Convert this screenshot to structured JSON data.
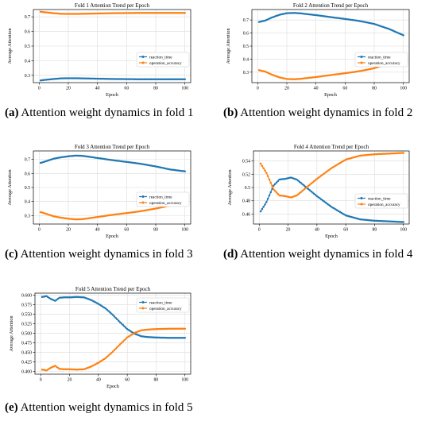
{
  "captions": [
    {
      "letter": "(a)",
      "text": " Attention weight dynamics in fold 1"
    },
    {
      "letter": "(b)",
      "text": " Attention weight dynamics in fold 2"
    },
    {
      "letter": "(c)",
      "text": " Attention weight dynamics in fold 3"
    },
    {
      "letter": "(d)",
      "text": " Attention weight dynamics in fold 4"
    },
    {
      "letter": "(e)",
      "text": " Attention weight dynamics in fold 5"
    }
  ],
  "colors": {
    "reaction_time": "#1f77b4",
    "operation_accuracy": "#ff7f0e"
  },
  "chart_data": [
    {
      "type": "line",
      "title": "Fold 1 Attention Trend per Epoch",
      "xlabel": "Epoch",
      "ylabel": "Average Attention",
      "xlim": [
        -4,
        104
      ],
      "ylim": [
        0.25,
        0.75
      ],
      "xticks": [
        0,
        20,
        40,
        60,
        80,
        100
      ],
      "yticks": [
        0.3,
        0.4,
        0.5,
        0.6,
        0.7
      ],
      "grid": true,
      "legend": "center-right",
      "series": [
        {
          "name": "reaction_time",
          "points": [
            [
              1,
              0.265
            ],
            [
              5,
              0.27
            ],
            [
              10,
              0.275
            ],
            [
              15,
              0.279
            ],
            [
              20,
              0.28
            ],
            [
              25,
              0.28
            ],
            [
              30,
              0.279
            ],
            [
              40,
              0.277
            ],
            [
              50,
              0.275
            ],
            [
              60,
              0.274
            ],
            [
              70,
              0.273
            ],
            [
              80,
              0.273
            ],
            [
              90,
              0.273
            ],
            [
              100,
              0.273
            ]
          ]
        },
        {
          "name": "operation_accuracy",
          "points": [
            [
              1,
              0.735
            ],
            [
              5,
              0.73
            ],
            [
              10,
              0.725
            ],
            [
              15,
              0.721
            ],
            [
              20,
              0.72
            ],
            [
              25,
              0.72
            ],
            [
              30,
              0.721
            ],
            [
              40,
              0.723
            ],
            [
              50,
              0.725
            ],
            [
              60,
              0.726
            ],
            [
              70,
              0.727
            ],
            [
              80,
              0.727
            ],
            [
              90,
              0.727
            ],
            [
              100,
              0.727
            ]
          ]
        }
      ]
    },
    {
      "type": "line",
      "title": "Fold 2 Attention Trend per Epoch",
      "xlabel": "Epoch",
      "ylabel": "Average Attention",
      "xlim": [
        -4,
        104
      ],
      "ylim": [
        0.22,
        0.78
      ],
      "xticks": [
        0,
        20,
        40,
        60,
        80,
        100
      ],
      "yticks": [
        0.3,
        0.4,
        0.5,
        0.6,
        0.7
      ],
      "grid": true,
      "legend": "center-right",
      "series": [
        {
          "name": "reaction_time",
          "points": [
            [
              1,
              0.685
            ],
            [
              5,
              0.695
            ],
            [
              10,
              0.72
            ],
            [
              15,
              0.74
            ],
            [
              20,
              0.752
            ],
            [
              25,
              0.754
            ],
            [
              30,
              0.75
            ],
            [
              40,
              0.737
            ],
            [
              50,
              0.722
            ],
            [
              60,
              0.708
            ],
            [
              70,
              0.692
            ],
            [
              80,
              0.67
            ],
            [
              90,
              0.632
            ],
            [
              100,
              0.583
            ]
          ]
        },
        {
          "name": "operation_accuracy",
          "points": [
            [
              1,
              0.315
            ],
            [
              5,
              0.305
            ],
            [
              10,
              0.28
            ],
            [
              15,
              0.26
            ],
            [
              20,
              0.248
            ],
            [
              25,
              0.246
            ],
            [
              30,
              0.25
            ],
            [
              40,
              0.263
            ],
            [
              50,
              0.278
            ],
            [
              60,
              0.292
            ],
            [
              70,
              0.308
            ],
            [
              80,
              0.33
            ],
            [
              90,
              0.368
            ],
            [
              100,
              0.417
            ]
          ]
        }
      ]
    },
    {
      "type": "line",
      "title": "Fold 3 Attention Trend per Epoch",
      "xlabel": "Epoch",
      "ylabel": "Average Attention",
      "xlim": [
        -4,
        104
      ],
      "ylim": [
        0.24,
        0.76
      ],
      "xticks": [
        0,
        20,
        40,
        60,
        80,
        100
      ],
      "yticks": [
        0.3,
        0.4,
        0.5,
        0.6,
        0.7
      ],
      "grid": true,
      "legend": "center-right",
      "series": [
        {
          "name": "reaction_time",
          "points": [
            [
              1,
              0.675
            ],
            [
              5,
              0.688
            ],
            [
              10,
              0.705
            ],
            [
              15,
              0.715
            ],
            [
              20,
              0.722
            ],
            [
              25,
              0.727
            ],
            [
              30,
              0.725
            ],
            [
              40,
              0.71
            ],
            [
              50,
              0.695
            ],
            [
              60,
              0.682
            ],
            [
              70,
              0.668
            ],
            [
              80,
              0.65
            ],
            [
              90,
              0.628
            ],
            [
              100,
              0.615
            ]
          ]
        },
        {
          "name": "operation_accuracy",
          "points": [
            [
              1,
              0.325
            ],
            [
              5,
              0.312
            ],
            [
              10,
              0.295
            ],
            [
              15,
              0.285
            ],
            [
              20,
              0.278
            ],
            [
              25,
              0.273
            ],
            [
              30,
              0.275
            ],
            [
              40,
              0.29
            ],
            [
              50,
              0.305
            ],
            [
              60,
              0.318
            ],
            [
              70,
              0.332
            ],
            [
              80,
              0.35
            ],
            [
              90,
              0.372
            ],
            [
              100,
              0.385
            ]
          ]
        }
      ]
    },
    {
      "type": "line",
      "title": "Fold 4 Attention Trend per Epoch",
      "xlabel": "Epoch",
      "ylabel": "Average Attention",
      "xlim": [
        -4,
        104
      ],
      "ylim": [
        0.445,
        0.555
      ],
      "xticks": [
        0,
        20,
        40,
        60,
        80,
        100
      ],
      "yticks": [
        0.46,
        0.48,
        0.5,
        0.52,
        0.54
      ],
      "grid": true,
      "legend": "center-right",
      "series": [
        {
          "name": "reaction_time",
          "points": [
            [
              1,
              0.464
            ],
            [
              5,
              0.478
            ],
            [
              10,
              0.503
            ],
            [
              14,
              0.512
            ],
            [
              18,
              0.513
            ],
            [
              22,
              0.515
            ],
            [
              26,
              0.512
            ],
            [
              30,
              0.505
            ],
            [
              35,
              0.496
            ],
            [
              40,
              0.487
            ],
            [
              50,
              0.471
            ],
            [
              60,
              0.458
            ],
            [
              70,
              0.452
            ],
            [
              80,
              0.45
            ],
            [
              90,
              0.449
            ],
            [
              100,
              0.448
            ]
          ]
        },
        {
          "name": "operation_accuracy",
          "points": [
            [
              1,
              0.536
            ],
            [
              5,
              0.522
            ],
            [
              10,
              0.497
            ],
            [
              14,
              0.488
            ],
            [
              18,
              0.487
            ],
            [
              22,
              0.485
            ],
            [
              26,
              0.488
            ],
            [
              30,
              0.495
            ],
            [
              35,
              0.504
            ],
            [
              40,
              0.513
            ],
            [
              50,
              0.529
            ],
            [
              60,
              0.542
            ],
            [
              70,
              0.548
            ],
            [
              80,
              0.55
            ],
            [
              90,
              0.551
            ],
            [
              100,
              0.552
            ]
          ]
        }
      ]
    },
    {
      "type": "line",
      "title": "Fold 5 Attention Trend per Epoch",
      "xlabel": "Epoch",
      "ylabel": "Average Attention",
      "xlim": [
        -4,
        104
      ],
      "ylim": [
        0.393,
        0.605
      ],
      "xticks": [
        0,
        20,
        40,
        60,
        80,
        100
      ],
      "yticks": [
        0.4,
        0.425,
        0.45,
        0.475,
        0.5,
        0.525,
        0.55,
        0.575,
        0.6
      ],
      "ytick_labels": [
        "0.400",
        "0.425",
        "0.450",
        "0.475",
        "0.500",
        "0.525",
        "0.550",
        "0.575",
        "0.600"
      ],
      "grid": true,
      "legend": "top-right",
      "series": [
        {
          "name": "reaction_time",
          "points": [
            [
              1,
              0.595
            ],
            [
              4,
              0.597
            ],
            [
              7,
              0.59
            ],
            [
              10,
              0.585
            ],
            [
              13,
              0.593
            ],
            [
              16,
              0.594
            ],
            [
              20,
              0.594
            ],
            [
              25,
              0.595
            ],
            [
              30,
              0.594
            ],
            [
              35,
              0.587
            ],
            [
              40,
              0.577
            ],
            [
              45,
              0.565
            ],
            [
              50,
              0.548
            ],
            [
              55,
              0.529
            ],
            [
              60,
              0.511
            ],
            [
              65,
              0.499
            ],
            [
              70,
              0.492
            ],
            [
              75,
              0.49
            ],
            [
              80,
              0.489
            ],
            [
              90,
              0.488
            ],
            [
              100,
              0.488
            ]
          ]
        },
        {
          "name": "operation_accuracy",
          "points": [
            [
              1,
              0.405
            ],
            [
              4,
              0.403
            ],
            [
              7,
              0.41
            ],
            [
              10,
              0.415
            ],
            [
              13,
              0.407
            ],
            [
              16,
              0.406
            ],
            [
              20,
              0.406
            ],
            [
              25,
              0.405
            ],
            [
              30,
              0.406
            ],
            [
              35,
              0.413
            ],
            [
              40,
              0.423
            ],
            [
              45,
              0.435
            ],
            [
              50,
              0.452
            ],
            [
              55,
              0.471
            ],
            [
              60,
              0.489
            ],
            [
              65,
              0.501
            ],
            [
              70,
              0.508
            ],
            [
              75,
              0.51
            ],
            [
              80,
              0.511
            ],
            [
              90,
              0.512
            ],
            [
              100,
              0.512
            ]
          ]
        }
      ]
    }
  ]
}
